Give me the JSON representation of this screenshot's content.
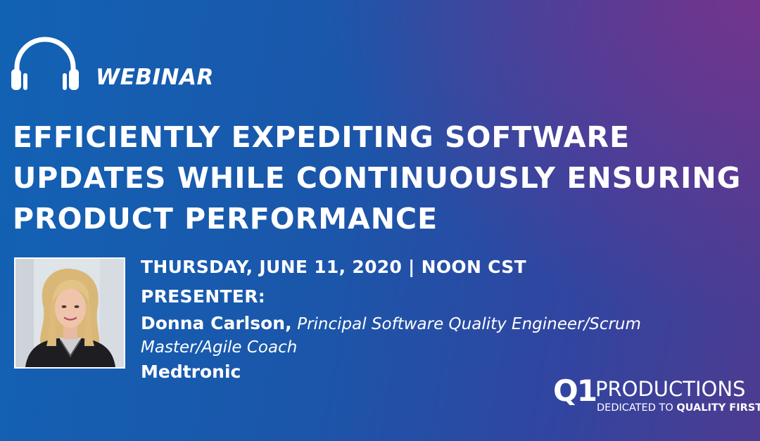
{
  "event": {
    "type_label": "WEBINAR",
    "title_lines": [
      "EFFICIENTLY EXPEDITING SOFTWARE",
      "UPDATES WHILE CONTINUOUSLY ENSURING",
      "PRODUCT PERFORMANCE"
    ],
    "date_time": "THURSDAY, JUNE 11, 2020 | NOON CST"
  },
  "presenter": {
    "label": "PRESENTER:",
    "name": "Donna Carlson,",
    "role": "Principal Software Quality Engineer/Scrum Master/Agile Coach",
    "company": "Medtronic"
  },
  "logo": {
    "mark": "Q1",
    "brand": "PRODUCTIONS",
    "tagline_prefix": "DEDICATED TO",
    "tagline_emphasis": "QUALITY FIRST"
  },
  "icons": {
    "header": "headphones-icon",
    "photo": "presenter-photo"
  },
  "colors": {
    "background_start": "#1262b4",
    "background_end": "#4d3b90",
    "accent_purple": "#76348c",
    "text": "#ffffff"
  }
}
